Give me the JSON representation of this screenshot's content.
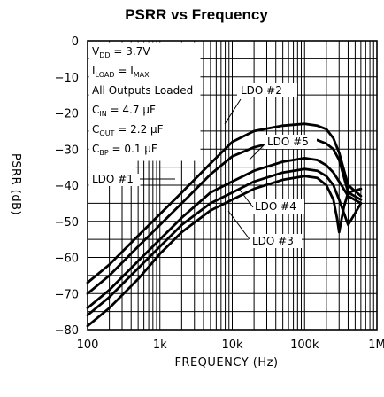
{
  "chart_data": {
    "type": "line",
    "title": "PSRR vs Frequency",
    "xlabel": "FREQUENCY (Hz)",
    "ylabel": "PSRR (dB)",
    "x_scale": "log",
    "xlim": [
      100,
      1000000
    ],
    "ylim": [
      -80,
      0
    ],
    "x_ticks": [
      100,
      1000,
      10000,
      100000,
      1000000
    ],
    "x_tick_labels": [
      "100",
      "1k",
      "10k",
      "100k",
      "1M"
    ],
    "y_ticks": [
      0,
      -10,
      -20,
      -30,
      -40,
      -50,
      -60,
      -70,
      -80
    ],
    "y_tick_labels": [
      "0",
      "−10",
      "−20",
      "−30",
      "−40",
      "−50",
      "−60",
      "−70",
      "−80"
    ],
    "grid": true,
    "conditions": {
      "vdd": {
        "sym": "V",
        "sub": "DD",
        "rest": " = 3.7V"
      },
      "iload": {
        "sym": "I",
        "sub": "LOAD",
        "mid": " = I",
        "sub2": "MAX"
      },
      "outputs": "All Outputs Loaded",
      "cin": {
        "sym": "C",
        "sub": "IN",
        "rest": " = 4.7 µF"
      },
      "cout": {
        "sym": "C",
        "sub": "OUT",
        "rest": " = 2.2 µF"
      },
      "cbp": {
        "sym": "C",
        "sub": "BP",
        "rest": " = 0.1 µF"
      }
    },
    "series": [
      {
        "name": "LDO #1",
        "x": [
          100,
          200,
          500,
          1000,
          2000,
          5000,
          10000,
          20000,
          50000,
          100000,
          150000,
          200000,
          250000,
          300000,
          400000,
          600000
        ],
        "y": [
          -70,
          -65,
          -57,
          -51,
          -45,
          -37,
          -32,
          -29.5,
          -27.5,
          -27,
          -27.5,
          -28.5,
          -30,
          -33,
          -42,
          -44
        ]
      },
      {
        "name": "LDO #2",
        "x": [
          100,
          200,
          500,
          1000,
          2000,
          5000,
          10000,
          20000,
          50000,
          100000,
          150000,
          200000,
          250000,
          300000,
          400000,
          600000
        ],
        "y": [
          -67,
          -62,
          -54,
          -48,
          -42,
          -34,
          -28,
          -25,
          -23.5,
          -23,
          -23.5,
          -24.5,
          -27,
          -31,
          -40,
          -43
        ]
      },
      {
        "name": "LDO #5",
        "x": [
          100,
          200,
          500,
          1000,
          2000,
          5000,
          10000,
          20000,
          50000,
          100000,
          150000,
          200000,
          250000,
          300000,
          400000,
          600000
        ],
        "y": [
          -74,
          -69,
          -61,
          -55,
          -49,
          -42,
          -39,
          -36,
          -33.5,
          -32.5,
          -33,
          -34.5,
          -36.5,
          -39,
          -43,
          -45
        ]
      },
      {
        "name": "LDO #4",
        "x": [
          100,
          200,
          500,
          1000,
          2000,
          5000,
          10000,
          20000,
          50000,
          100000,
          150000,
          200000,
          250000,
          300000,
          400000,
          600000
        ],
        "y": [
          -76,
          -71,
          -63,
          -57,
          -51,
          -45,
          -42,
          -39,
          -36.5,
          -35.5,
          -36,
          -37.5,
          -40,
          -44,
          -51,
          -45
        ]
      },
      {
        "name": "LDO #3",
        "x": [
          100,
          200,
          500,
          1000,
          2000,
          5000,
          10000,
          20000,
          50000,
          100000,
          150000,
          200000,
          250000,
          280000,
          300000,
          350000,
          400000,
          600000
        ],
        "y": [
          -79,
          -74,
          -66,
          -59,
          -53,
          -47,
          -44,
          -41,
          -38.5,
          -37.5,
          -38,
          -40,
          -44,
          -49,
          -53,
          -46,
          -42,
          -41
        ]
      }
    ],
    "annotations": [
      {
        "text": "LDO #1",
        "target_series": "LDO #1"
      },
      {
        "text": "LDO #2",
        "target_series": "LDO #2"
      },
      {
        "text": "LDO #5",
        "target_series": "LDO #5"
      },
      {
        "text": "LDO #4",
        "target_series": "LDO #4"
      },
      {
        "text": "LDO #3",
        "target_series": "LDO #3"
      }
    ]
  }
}
